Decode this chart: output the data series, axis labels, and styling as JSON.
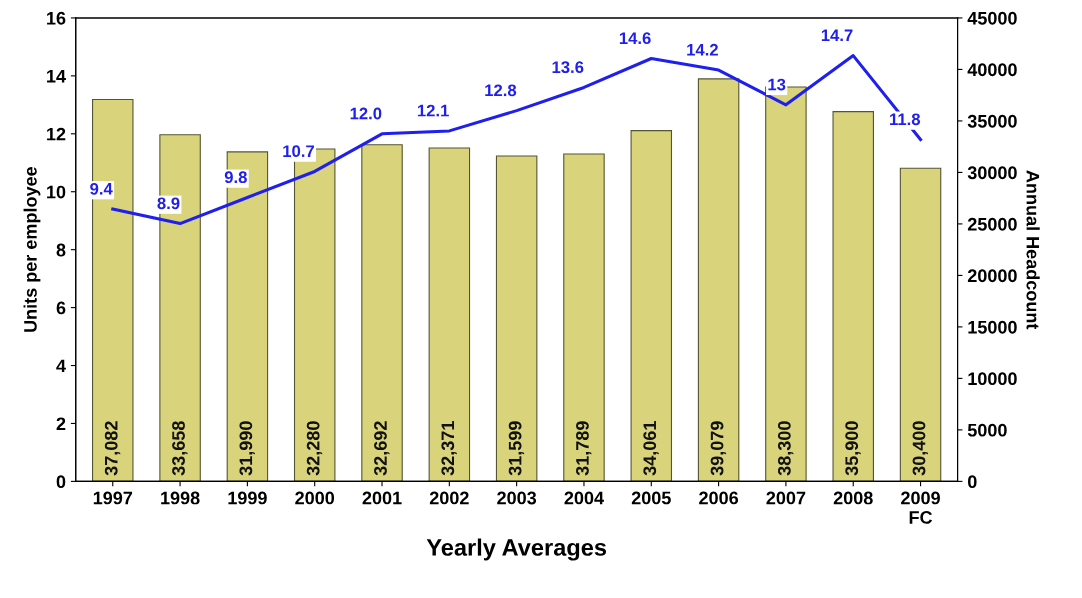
{
  "chart_data": {
    "type": "bar",
    "xlabel": "Yearly Averages",
    "ylabel": "Units per employee",
    "y2label": "Annual Headcount",
    "categories": [
      "1997",
      "1998",
      "1999",
      "2000",
      "2001",
      "2002",
      "2003",
      "2004",
      "2005",
      "2006",
      "2007",
      "2008",
      "2009\nFC"
    ],
    "series": [
      {
        "axis": "y2",
        "color": "#d9d47c",
        "values": [
          37082,
          33658,
          31990,
          32280,
          32692,
          32371,
          31599,
          31789,
          34061,
          39079,
          38300,
          35900,
          30400
        ],
        "value_labels": [
          "37,082",
          "33,658",
          "31,990",
          "32,280",
          "32,692",
          "32,371",
          "31,599",
          "31,789",
          "34,061",
          "39,079",
          "38,300",
          "35,900",
          "30,400"
        ]
      },
      {
        "type": "line",
        "axis": "y",
        "color": "#1f1fef",
        "values": [
          9.4,
          8.9,
          9.8,
          10.7,
          12.0,
          12.1,
          12.8,
          13.6,
          14.6,
          14.2,
          13,
          14.7,
          11.8
        ],
        "value_labels": [
          "9.4",
          "8.9",
          "9.8",
          "10.7",
          "12.0",
          "12.1",
          "12.8",
          "13.6",
          "14.6",
          "14.2",
          "13",
          "14.7",
          "11.8"
        ]
      }
    ],
    "ylim": [
      0,
      16
    ],
    "yticks": [
      0,
      2,
      4,
      6,
      8,
      10,
      12,
      14,
      16
    ],
    "y2lim": [
      0,
      45000
    ],
    "y2ticks": [
      0,
      5000,
      10000,
      15000,
      20000,
      25000,
      30000,
      35000,
      40000,
      45000
    ],
    "grid": false,
    "legend": false,
    "marker": "none",
    "line_style": "solid"
  }
}
